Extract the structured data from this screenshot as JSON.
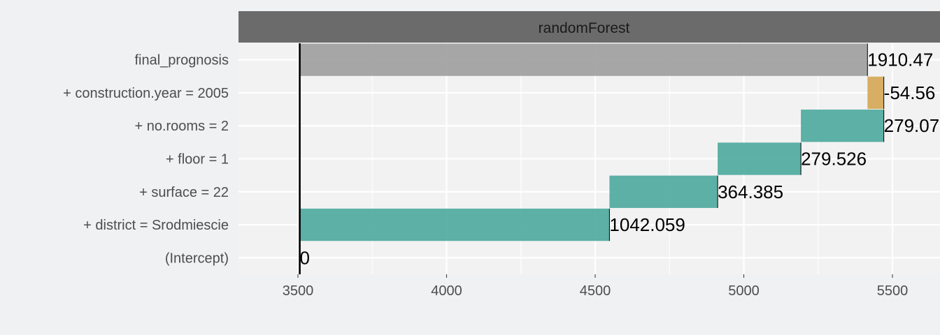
{
  "colors": {
    "page_background": "#f0f1f2",
    "panel_background": "#f2f2f2",
    "grid": "#ffffff",
    "strip": "#6b6b6b",
    "positive": "#4faa9e",
    "negative": "#d6a858",
    "final": "#a0a0a0",
    "baseline": "#000000"
  },
  "chart_data": {
    "type": "bar",
    "subtype": "waterfall / break-down",
    "panel_title": "randomForest",
    "intercept_value": 3506,
    "xlim": [
      3300,
      5660
    ],
    "xticks": [
      3500,
      4000,
      4500,
      5000,
      5500
    ],
    "xtick_labels": [
      "3500",
      "4000",
      "4500",
      "5000",
      "5500"
    ],
    "grid": true,
    "legend": "none",
    "bars": [
      {
        "label": "final_prognosis",
        "start": 3506,
        "end": 5416,
        "value_label": "1910.47",
        "kind": "final"
      },
      {
        "label": "+ construction.year = 2005",
        "start": 5416,
        "end": 5471,
        "value_label": "-54.56",
        "kind": "negative"
      },
      {
        "label": "+ no.rooms = 2",
        "start": 5192,
        "end": 5471,
        "value_label": "279.07",
        "kind": "positive"
      },
      {
        "label": "+ floor = 1",
        "start": 4912,
        "end": 5192,
        "value_label": "279.526",
        "kind": "positive"
      },
      {
        "label": "+ surface = 22",
        "start": 4548,
        "end": 4912,
        "value_label": "364.385",
        "kind": "positive"
      },
      {
        "label": "+ district = Srodmiescie",
        "start": 3506,
        "end": 4548,
        "value_label": "1042.059",
        "kind": "positive"
      },
      {
        "label": "(Intercept)",
        "start": 3506,
        "end": 3506,
        "value_label": "0",
        "kind": "intercept"
      }
    ]
  }
}
